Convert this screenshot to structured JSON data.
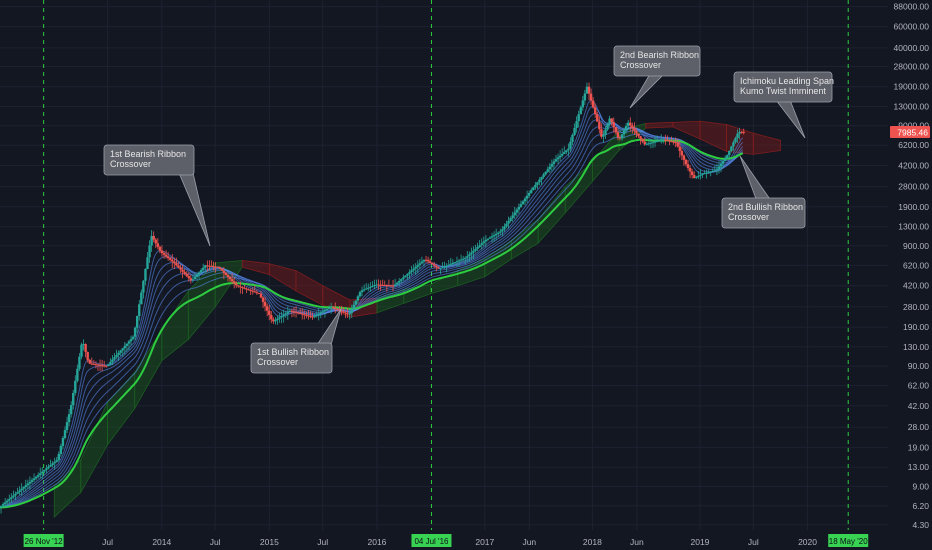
{
  "chart_data": {
    "type": "candlestick",
    "y_scale": "log",
    "ylim": [
      3.9,
      100000
    ],
    "xlim": [
      "2012-07-01",
      "2020-09-30"
    ],
    "colors": {
      "background": "#131722",
      "grid": "#1e2230",
      "up": "#26a69a",
      "down": "#ef5350",
      "ribbon_slow": "#2ecc40",
      "ribbon_fast": "#5b8ff9",
      "cloud_bull": "#1b5e20",
      "cloud_bear": "#7f1d1d",
      "halving_line": "#2ecc40",
      "price_tag": "#ef5350",
      "callout_bg": "#5d6068",
      "callout_border": "#9aa0ab"
    },
    "x_axis_ticks": [
      {
        "label": "Jul",
        "date": "2013-07-01"
      },
      {
        "label": "2014",
        "date": "2014-01-01"
      },
      {
        "label": "Jul",
        "date": "2014-07-01"
      },
      {
        "label": "2015",
        "date": "2015-01-01"
      },
      {
        "label": "Jul",
        "date": "2015-07-01"
      },
      {
        "label": "2016",
        "date": "2016-01-01"
      },
      {
        "label": "2017",
        "date": "2017-01-01"
      },
      {
        "label": "Jun",
        "date": "2017-06-01"
      },
      {
        "label": "2018",
        "date": "2018-01-01"
      },
      {
        "label": "Jun",
        "date": "2018-06-01"
      },
      {
        "label": "2019",
        "date": "2019-01-01"
      },
      {
        "label": "Jul",
        "date": "2019-07-01"
      },
      {
        "label": "2020",
        "date": "2020-01-01"
      }
    ],
    "y_axis_ticks": [
      "88000.00",
      "60000.00",
      "40000.00",
      "28000.00",
      "19000.00",
      "13000.00",
      "9000.00",
      "6200.00",
      "4200.00",
      "2800.00",
      "1900.00",
      "1300.00",
      "900.00",
      "620.00",
      "420.00",
      "280.00",
      "190.00",
      "130.00",
      "90.00",
      "62.00",
      "42.00",
      "28.00",
      "19.00",
      "13.00",
      "9.00",
      "6.20",
      "4.30"
    ],
    "halving_markers": [
      {
        "label": "26 Nov '12",
        "date": "2012-11-26"
      },
      {
        "label": "04 Jul '16",
        "date": "2016-07-04"
      },
      {
        "label": "18 May '20",
        "date": "2020-05-18"
      }
    ],
    "current_price_tag": {
      "label": "7985.46",
      "value": 7985.46
    },
    "price_path": [
      [
        "2012-07-01",
        6
      ],
      [
        "2012-11-26",
        12
      ],
      [
        "2013-01-15",
        15
      ],
      [
        "2013-03-01",
        40
      ],
      [
        "2013-04-10",
        150
      ],
      [
        "2013-05-01",
        95
      ],
      [
        "2013-07-01",
        90
      ],
      [
        "2013-10-01",
        160
      ],
      [
        "2013-11-30",
        1100
      ],
      [
        "2014-01-01",
        800
      ],
      [
        "2014-02-15",
        650
      ],
      [
        "2014-04-15",
        460
      ],
      [
        "2014-06-01",
        620
      ],
      [
        "2014-07-15",
        600
      ],
      [
        "2014-09-15",
        420
      ],
      [
        "2014-12-01",
        360
      ],
      [
        "2015-01-15",
        210
      ],
      [
        "2015-03-15",
        260
      ],
      [
        "2015-06-01",
        230
      ],
      [
        "2015-08-01",
        280
      ],
      [
        "2015-10-01",
        240
      ],
      [
        "2015-11-10",
        380
      ],
      [
        "2016-01-01",
        430
      ],
      [
        "2016-03-01",
        420
      ],
      [
        "2016-06-15",
        700
      ],
      [
        "2016-08-01",
        580
      ],
      [
        "2016-11-01",
        720
      ],
      [
        "2017-01-05",
        1000
      ],
      [
        "2017-03-01",
        1200
      ],
      [
        "2017-06-15",
        2700
      ],
      [
        "2017-09-01",
        4700
      ],
      [
        "2017-10-15",
        5800
      ],
      [
        "2017-12-17",
        19000
      ],
      [
        "2018-01-15",
        11000
      ],
      [
        "2018-02-06",
        7000
      ],
      [
        "2018-03-05",
        10500
      ],
      [
        "2018-04-05",
        6800
      ],
      [
        "2018-05-05",
        9600
      ],
      [
        "2018-07-01",
        6300
      ],
      [
        "2018-09-01",
        6900
      ],
      [
        "2018-10-15",
        6500
      ],
      [
        "2018-11-20",
        4200
      ],
      [
        "2018-12-15",
        3300
      ],
      [
        "2019-01-15",
        3600
      ],
      [
        "2019-03-01",
        3850
      ],
      [
        "2019-04-05",
        5000
      ],
      [
        "2019-05-15",
        8000
      ],
      [
        "2019-06-01",
        7985.46
      ]
    ],
    "cloud": [
      [
        "2013-01-01",
        5,
        9,
        "bull"
      ],
      [
        "2013-04-01",
        8,
        15,
        "bull"
      ],
      [
        "2013-07-01",
        20,
        45,
        "bull"
      ],
      [
        "2013-10-01",
        40,
        80,
        "bull"
      ],
      [
        "2014-01-01",
        100,
        180,
        "bull"
      ],
      [
        "2014-04-01",
        150,
        380,
        "bull"
      ],
      [
        "2014-07-01",
        280,
        650,
        "bull"
      ],
      [
        "2014-10-01",
        600,
        680,
        "bear"
      ],
      [
        "2015-01-01",
        520,
        640,
        "bear"
      ],
      [
        "2015-04-01",
        380,
        560,
        "bear"
      ],
      [
        "2015-07-01",
        290,
        420,
        "bear"
      ],
      [
        "2015-10-01",
        230,
        320,
        "bear"
      ],
      [
        "2016-01-01",
        250,
        330,
        "bull"
      ],
      [
        "2016-04-01",
        300,
        390,
        "bull"
      ],
      [
        "2016-07-01",
        360,
        430,
        "bull"
      ],
      [
        "2016-10-01",
        420,
        560,
        "bull"
      ],
      [
        "2017-01-01",
        500,
        700,
        "bull"
      ],
      [
        "2017-04-01",
        700,
        1000,
        "bull"
      ],
      [
        "2017-07-01",
        950,
        1500,
        "bull"
      ],
      [
        "2017-10-01",
        1700,
        2800,
        "bull"
      ],
      [
        "2018-01-01",
        3100,
        4500,
        "bull"
      ],
      [
        "2018-04-01",
        5600,
        8200,
        "bull"
      ],
      [
        "2018-07-01",
        8600,
        9400,
        "bear"
      ],
      [
        "2018-10-01",
        8800,
        9600,
        "bear"
      ],
      [
        "2019-01-01",
        7000,
        9800,
        "bear"
      ],
      [
        "2019-04-01",
        5500,
        9200,
        "bear"
      ],
      [
        "2019-07-01",
        5200,
        7800,
        "bear"
      ],
      [
        "2019-10-01",
        5600,
        6800,
        "bear"
      ]
    ],
    "annotations": [
      {
        "text": [
          "1st Bearish Ribbon",
          "Crossover"
        ],
        "date": "2014-07-15",
        "value": 800
      },
      {
        "text": [
          "1st Bullish Ribbon",
          "Crossover"
        ],
        "date": "2015-08-15",
        "value": 240
      },
      {
        "text": [
          "2nd Bearish Ribbon",
          "Crossover"
        ],
        "date": "2018-05-01",
        "value": 10500
      },
      {
        "text": [
          "2nd Bullish Ribbon",
          "Crossover"
        ],
        "date": "2019-04-05",
        "value": 4300
      },
      {
        "text": [
          "Ichimoku Leading Span",
          "Kumo Twist Imminent"
        ],
        "date": "2019-11-01",
        "value": 6000
      }
    ]
  }
}
